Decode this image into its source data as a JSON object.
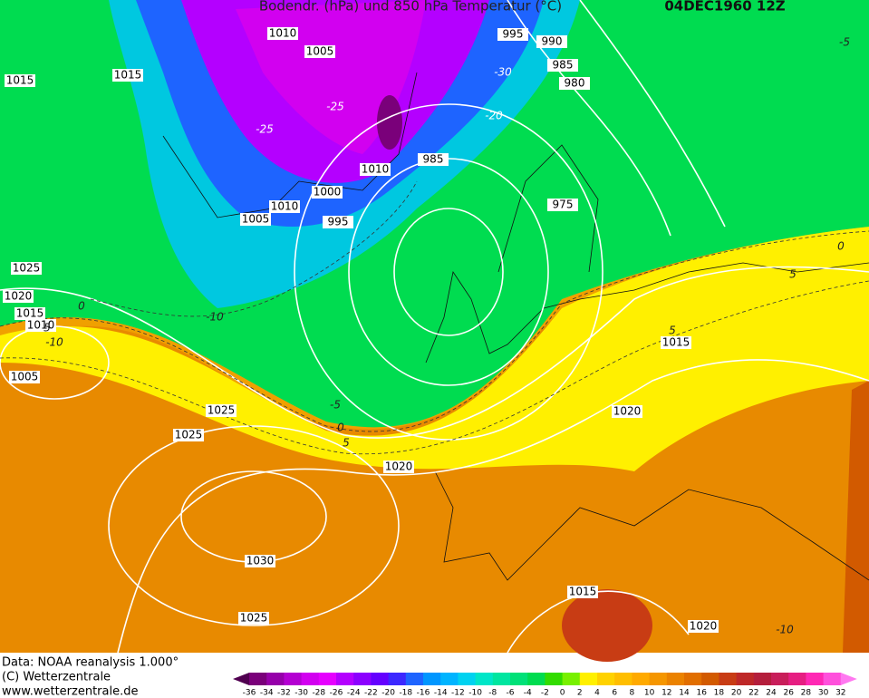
{
  "header": {
    "title": "Bodendr. (hPa) und 850 hPa Temperatur (°C)",
    "date": "04DEC1960 12Z"
  },
  "isobar_labels": [
    "1010",
    "1005",
    "995",
    "990",
    "985",
    "980",
    "1015",
    "1015",
    "1010",
    "985",
    "1000",
    "1010",
    "1005",
    "995",
    "975",
    "1025",
    "1020",
    "1015",
    "1010",
    "1005",
    "1025",
    "1025",
    "1020",
    "1015",
    "1020",
    "1030",
    "1025",
    "1015",
    "1020"
  ],
  "temperature_labels": [
    "-25",
    "-30",
    "-20",
    "-25",
    "-10",
    "-10",
    "5",
    "-5",
    "0",
    "5",
    "5",
    "0",
    "5",
    "-10",
    "0",
    "-5"
  ],
  "footer": {
    "source": "Data: NOAA reanalysis 1.000°",
    "copyright": "(C) Wetterzentrale",
    "url": "www.wetterzentrale.de"
  },
  "colorbar": {
    "ticks": [
      -36,
      -34,
      -32,
      -30,
      -28,
      -26,
      -24,
      -22,
      -20,
      -18,
      -16,
      -14,
      -12,
      -10,
      -8,
      -6,
      -4,
      -2,
      0,
      2,
      4,
      6,
      8,
      10,
      12,
      14,
      16,
      18,
      20,
      22,
      24,
      26,
      28,
      30,
      32
    ],
    "colors": [
      "#500050",
      "#7a007a",
      "#9600aa",
      "#b400d2",
      "#d200f0",
      "#e600ff",
      "#b400ff",
      "#8c00ff",
      "#6400ff",
      "#3c28ff",
      "#1e64ff",
      "#0096ff",
      "#00b4ff",
      "#00d2f0",
      "#00e6c8",
      "#00e6a0",
      "#00e178",
      "#00dc50",
      "#32dc00",
      "#78f000",
      "#fff000",
      "#ffd200",
      "#ffbe00",
      "#ffaa00",
      "#f59600",
      "#eb8200",
      "#e16e00",
      "#d25a00",
      "#c83c14",
      "#be2828",
      "#b41e3c",
      "#c81e5a",
      "#e61e82",
      "#ff28b4",
      "#ff50dc",
      "#ff78f0"
    ]
  }
}
